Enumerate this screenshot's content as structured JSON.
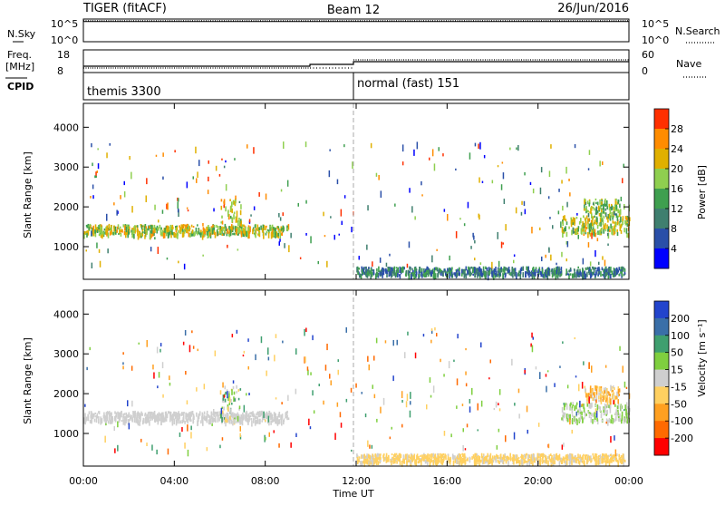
{
  "header": {
    "radar": "TIGER (fitACF)",
    "beam": "Beam 12",
    "date": "26/Jun/2016"
  },
  "noise_panel": {
    "left_label": "N.Sky",
    "right_label": "N.Search",
    "left_ticks": [
      "10^5",
      "10^0"
    ],
    "right_ticks": [
      "10^5",
      "10^0"
    ]
  },
  "freq_panel": {
    "left_label_1": "Freq.",
    "left_label_2": "[MHz]",
    "left_ticks": [
      "18",
      "8"
    ],
    "right_ticks": [
      "60",
      "0"
    ],
    "right_label": "Nave",
    "cpid_label": "CPID",
    "cpid_segments": [
      "themis 3300",
      "normal (fast) 151"
    ]
  },
  "x_axis": {
    "title": "Time UT",
    "ticks": [
      "00:00",
      "04:00",
      "08:00",
      "12:00",
      "16:00",
      "20:00",
      "00:00"
    ]
  },
  "power_panel": {
    "ylabel": "Slant Range [km]",
    "yticks": [
      "4000",
      "3000",
      "2000",
      "1000"
    ],
    "colorbar_label": "Power [dB]",
    "colorbar_ticks": [
      "28",
      "24",
      "20",
      "16",
      "12",
      "8",
      "4"
    ],
    "colors": [
      "#0000ff",
      "#2a4fa8",
      "#3f7f6f",
      "#3f9f4f",
      "#8fcf4f",
      "#e0b000",
      "#ff8c00",
      "#ff3000"
    ]
  },
  "velocity_panel": {
    "ylabel": "Slant Range [km]",
    "yticks": [
      "4000",
      "3000",
      "2000",
      "1000"
    ],
    "colorbar_label": "Velocity [m s⁻¹]",
    "colorbar_ticks": [
      "200",
      "100",
      "50",
      "15",
      "-15",
      "-50",
      "-100",
      "-200"
    ],
    "colors": [
      "#2244cc",
      "#3a6fa8",
      "#3f9f6f",
      "#7fcf3f",
      "#cfcfcf",
      "#ffd060",
      "#ffa020",
      "#ff6a00",
      "#ff0000"
    ]
  },
  "chart_data": [
    {
      "type": "heatmap",
      "title": "",
      "xlabel": "Time UT",
      "ylabel": "Slant Range [km]",
      "x_range_hours": [
        0,
        24
      ],
      "ylim": [
        180,
        4600
      ],
      "variable": "Power [dB]",
      "color_range": [
        0,
        32
      ],
      "bands": [
        {
          "t_start": 0.0,
          "t_end": 9.0,
          "range_center_km": 1380,
          "range_width_km": 250,
          "value_range": [
            12,
            26
          ]
        },
        {
          "t_start": 6.0,
          "t_end": 6.9,
          "range_center_km": 1700,
          "range_width_km": 900,
          "value_range": [
            10,
            28
          ]
        },
        {
          "t_start": 12.0,
          "t_end": 23.8,
          "range_center_km": 340,
          "range_width_km": 200,
          "value_range": [
            4,
            16
          ]
        },
        {
          "t_start": 21.0,
          "t_end": 24.0,
          "range_center_km": 1500,
          "range_width_km": 450,
          "value_range": [
            12,
            26
          ]
        },
        {
          "t_start": 22.0,
          "t_end": 23.6,
          "range_center_km": 1950,
          "range_width_km": 400,
          "value_range": [
            10,
            22
          ]
        }
      ]
    },
    {
      "type": "heatmap",
      "title": "",
      "xlabel": "Time UT",
      "ylabel": "Slant Range [km]",
      "x_range_hours": [
        0,
        24
      ],
      "ylim": [
        180,
        4600
      ],
      "variable": "Velocity [m s-1]",
      "color_range": [
        -200,
        200
      ],
      "bands": [
        {
          "t_start": 0.0,
          "t_end": 9.0,
          "range_center_km": 1380,
          "range_width_km": 250,
          "value_range": [
            -15,
            15
          ]
        },
        {
          "t_start": 6.0,
          "t_end": 6.9,
          "range_center_km": 1700,
          "range_width_km": 900,
          "value_range": [
            -50,
            100
          ]
        },
        {
          "t_start": 12.0,
          "t_end": 23.8,
          "range_center_km": 340,
          "range_width_km": 200,
          "value_range": [
            -50,
            -15
          ]
        },
        {
          "t_start": 21.0,
          "t_end": 24.0,
          "range_center_km": 1500,
          "range_width_km": 450,
          "value_range": [
            -15,
            50
          ]
        },
        {
          "t_start": 22.0,
          "t_end": 23.6,
          "range_center_km": 1950,
          "range_width_km": 400,
          "value_range": [
            -100,
            15
          ]
        }
      ]
    }
  ]
}
